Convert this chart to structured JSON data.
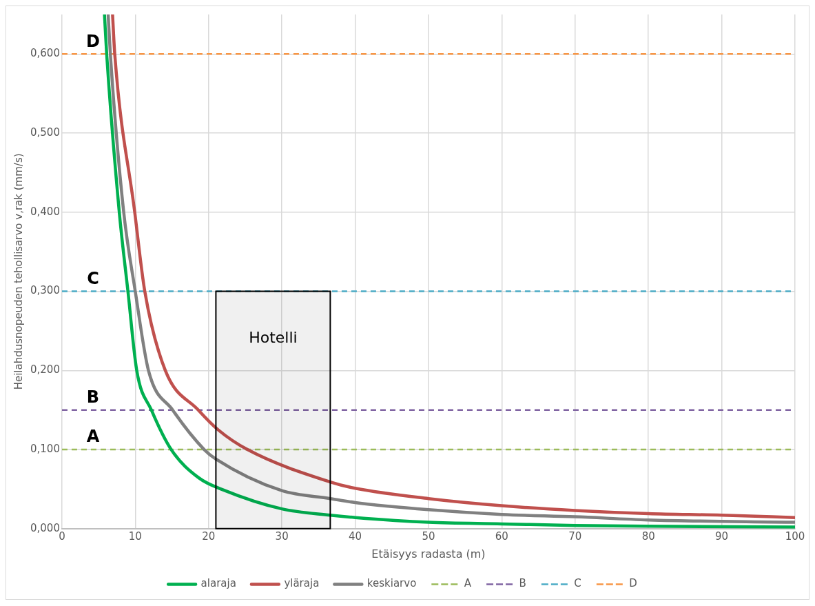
{
  "chart_data": {
    "type": "line",
    "xlabel": "Etäisyys radasta (m)",
    "ylabel": "Heilahdusnopeuden tehollisarvo v,rak (mm/s)",
    "xlim": [
      0,
      100
    ],
    "xticks": [
      0,
      10,
      20,
      30,
      40,
      50,
      60,
      70,
      80,
      90,
      100
    ],
    "ylim": [
      0,
      0.65
    ],
    "yticks": [
      {
        "value": 0,
        "label": "0,000"
      },
      {
        "value": 0.1,
        "label": "0,100"
      },
      {
        "value": 0.2,
        "label": "0,200"
      },
      {
        "value": 0.3,
        "label": "0,300"
      },
      {
        "value": 0.4,
        "label": "0,400"
      },
      {
        "value": 0.5,
        "label": "0,500"
      },
      {
        "value": 0.6,
        "label": "0,600"
      }
    ],
    "grid": true,
    "legend": "bottom",
    "marker": "none",
    "line_style": "solid",
    "series": [
      {
        "name": "alaraja",
        "color": "#00b050",
        "x": [
          5.8,
          6.1,
          7.8,
          9.0,
          10.2,
          12.2,
          14.9,
          18.7,
          22,
          30,
          36.6,
          40,
          50,
          60,
          70,
          80,
          100
        ],
        "values": [
          0.65,
          0.6,
          0.402,
          0.3,
          0.2,
          0.15,
          0.1,
          0.064,
          0.049,
          0.025,
          0.017,
          0.014,
          0.008,
          0.006,
          0.004,
          0.003,
          0.002
        ]
      },
      {
        "name": "yläraja",
        "color": "#c0504d",
        "x": [
          6.9,
          7.2,
          9.9,
          11.3,
          14.1,
          18.6,
          21.3,
          25.3,
          36.6,
          40,
          50,
          60,
          70,
          80,
          90,
          100
        ],
        "values": [
          0.65,
          0.6,
          0.402,
          0.3,
          0.2,
          0.15,
          0.125,
          0.1,
          0.059,
          0.051,
          0.038,
          0.029,
          0.023,
          0.019,
          0.017,
          0.014
        ]
      },
      {
        "name": "keskiarvo",
        "color": "#808080",
        "x": [
          6.3,
          6.6,
          8.4,
          10.0,
          11.8,
          15.1,
          19.4,
          21.0,
          30,
          36.6,
          40,
          50,
          60,
          70,
          80,
          100
        ],
        "values": [
          0.65,
          0.6,
          0.402,
          0.3,
          0.2,
          0.15,
          0.1,
          0.088,
          0.048,
          0.038,
          0.033,
          0.024,
          0.018,
          0.015,
          0.011,
          0.008
        ]
      }
    ],
    "ref_lines": [
      {
        "axis": "y",
        "value": 0.1,
        "label": "A",
        "color": "#9bbb59",
        "line_style": "dashed"
      },
      {
        "axis": "y",
        "value": 0.15,
        "label": "B",
        "color": "#8064a2",
        "line_style": "dashed"
      },
      {
        "axis": "y",
        "value": 0.3,
        "label": "C",
        "color": "#4bacc6",
        "line_style": "dashed"
      },
      {
        "axis": "y",
        "value": 0.6,
        "label": "D",
        "color": "#f79646",
        "line_style": "dashed"
      }
    ],
    "bands": [
      {
        "axis": "x",
        "from": 21,
        "to": 36.6,
        "label": "Hotelli",
        "color": "#000000"
      }
    ]
  }
}
